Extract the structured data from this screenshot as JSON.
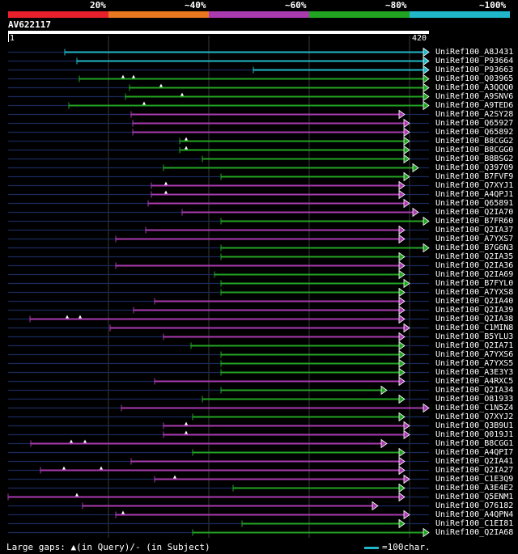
{
  "query": {
    "name": "AV622117",
    "start": "1",
    "end": "420"
  },
  "percent_labels": [
    "20%",
    "~40%",
    "~60%",
    "~80%",
    "~100%"
  ],
  "colors": {
    "red": "#e8202c",
    "orange": "#e8771f",
    "magenta": "#a93ab0",
    "green": "#22a423",
    "cyan": "#1fb7c9",
    "line": "#1a2a5c"
  },
  "hits": [
    {
      "name": "UniRef100_A8J431",
      "color": "cyan",
      "start": 80,
      "end": 530,
      "marks": []
    },
    {
      "name": "UniRef100_P93664",
      "color": "cyan",
      "start": 95,
      "end": 530,
      "marks": []
    },
    {
      "name": "UniRef100_P93663",
      "color": "cyan",
      "start": 313,
      "end": 530,
      "marks": []
    },
    {
      "name": "UniRef100_Q03965",
      "color": "green",
      "start": 98,
      "end": 530,
      "marks": [
        152,
        165
      ]
    },
    {
      "name": "UniRef100_A3QQQ0",
      "color": "green",
      "start": 160,
      "end": 530,
      "marks": [
        199
      ]
    },
    {
      "name": "UniRef100_A9SNV6",
      "color": "green",
      "start": 155,
      "end": 530,
      "marks": [
        225
      ]
    },
    {
      "name": "UniRef100_A9TED6",
      "color": "green",
      "start": 85,
      "end": 530,
      "marks": [
        178
      ]
    },
    {
      "name": "UniRef100_A2SY28",
      "color": "magenta",
      "start": 162,
      "end": 500,
      "marks": []
    },
    {
      "name": "UniRef100_Q65927",
      "color": "magenta",
      "start": 164,
      "end": 506,
      "marks": []
    },
    {
      "name": "UniRef100_Q65892",
      "color": "magenta",
      "start": 164,
      "end": 506,
      "marks": []
    },
    {
      "name": "UniRef100_B8CGG2",
      "color": "green",
      "start": 222,
      "end": 506,
      "marks": [
        230
      ]
    },
    {
      "name": "UniRef100_B8CGG0",
      "color": "green",
      "start": 222,
      "end": 506,
      "marks": [
        230
      ]
    },
    {
      "name": "UniRef100_B8BSG2",
      "color": "green",
      "start": 250,
      "end": 506,
      "marks": []
    },
    {
      "name": "UniRef100_Q39709",
      "color": "green",
      "start": 202,
      "end": 517,
      "marks": []
    },
    {
      "name": "UniRef100_B7FVF9",
      "color": "green",
      "start": 273,
      "end": 506,
      "marks": []
    },
    {
      "name": "UniRef100_Q7XYJ1",
      "color": "magenta",
      "start": 187,
      "end": 500,
      "marks": [
        205
      ]
    },
    {
      "name": "UniRef100_A4QPJ1",
      "color": "magenta",
      "start": 187,
      "end": 500,
      "marks": [
        205
      ]
    },
    {
      "name": "UniRef100_Q65891",
      "color": "magenta",
      "start": 183,
      "end": 506,
      "marks": []
    },
    {
      "name": "UniRef100_Q2IA70",
      "color": "magenta",
      "start": 225,
      "end": 517,
      "marks": []
    },
    {
      "name": "UniRef100_B7FR60",
      "color": "green",
      "start": 273,
      "end": 530,
      "marks": []
    },
    {
      "name": "UniRef100_Q2IA37",
      "color": "magenta",
      "start": 180,
      "end": 500,
      "marks": []
    },
    {
      "name": "UniRef100_A7YXS7",
      "color": "magenta",
      "start": 143,
      "end": 500,
      "marks": []
    },
    {
      "name": "UniRef100_B7G6N3",
      "color": "green",
      "start": 273,
      "end": 530,
      "marks": []
    },
    {
      "name": "UniRef100_Q2IA35",
      "color": "green",
      "start": 273,
      "end": 500,
      "marks": []
    },
    {
      "name": "UniRef100_Q2IA36",
      "color": "magenta",
      "start": 143,
      "end": 500,
      "marks": []
    },
    {
      "name": "UniRef100_Q2IA69",
      "color": "green",
      "start": 265,
      "end": 500,
      "marks": []
    },
    {
      "name": "UniRef100_B7FYL0",
      "color": "green",
      "start": 273,
      "end": 506,
      "marks": []
    },
    {
      "name": "UniRef100_A7YXS8",
      "color": "green",
      "start": 273,
      "end": 500,
      "marks": []
    },
    {
      "name": "UniRef100_Q2IA40",
      "color": "magenta",
      "start": 191,
      "end": 500,
      "marks": []
    },
    {
      "name": "UniRef100_Q2IA39",
      "color": "magenta",
      "start": 165,
      "end": 500,
      "marks": []
    },
    {
      "name": "UniRef100_Q2IA38",
      "color": "magenta",
      "start": 37,
      "end": 500,
      "marks": [
        83,
        99
      ]
    },
    {
      "name": "UniRef100_C1MIN8",
      "color": "magenta",
      "start": 136,
      "end": 506,
      "marks": []
    },
    {
      "name": "UniRef100_B5YLU3",
      "color": "magenta",
      "start": 202,
      "end": 500,
      "marks": []
    },
    {
      "name": "UniRef100_Q2IA71",
      "color": "green",
      "start": 236,
      "end": 500,
      "marks": []
    },
    {
      "name": "UniRef100_A7YXS6",
      "color": "green",
      "start": 273,
      "end": 500,
      "marks": []
    },
    {
      "name": "UniRef100_A7YXS5",
      "color": "green",
      "start": 273,
      "end": 500,
      "marks": []
    },
    {
      "name": "UniRef100_A3E3Y3",
      "color": "green",
      "start": 273,
      "end": 500,
      "marks": []
    },
    {
      "name": "UniRef100_A4RXC5",
      "color": "magenta",
      "start": 191,
      "end": 500,
      "marks": []
    },
    {
      "name": "UniRef100_Q2IA34",
      "color": "green",
      "start": 273,
      "end": 478,
      "marks": []
    },
    {
      "name": "UniRef100_O81933",
      "color": "green",
      "start": 250,
      "end": 500,
      "marks": []
    },
    {
      "name": "UniRef100_C1N5Z4",
      "color": "magenta",
      "start": 150,
      "end": 530,
      "marks": []
    },
    {
      "name": "UniRef100_Q7XYJ2",
      "color": "green",
      "start": 238,
      "end": 500,
      "marks": []
    },
    {
      "name": "UniRef100_Q3B9U1",
      "color": "magenta",
      "start": 202,
      "end": 506,
      "marks": [
        230
      ]
    },
    {
      "name": "UniRef100_Q019J1",
      "color": "magenta",
      "start": 202,
      "end": 506,
      "marks": [
        230
      ]
    },
    {
      "name": "UniRef100_B8CGG1",
      "color": "magenta",
      "start": 38,
      "end": 478,
      "marks": [
        88,
        105
      ]
    },
    {
      "name": "UniRef100_A4QPI7",
      "color": "green",
      "start": 238,
      "end": 500,
      "marks": []
    },
    {
      "name": "UniRef100_Q2IA41",
      "color": "magenta",
      "start": 162,
      "end": 500,
      "marks": []
    },
    {
      "name": "UniRef100_Q2IA27",
      "color": "magenta",
      "start": 50,
      "end": 500,
      "marks": [
        79,
        125
      ]
    },
    {
      "name": "UniRef100_C1E3Q9",
      "color": "magenta",
      "start": 191,
      "end": 506,
      "marks": [
        216
      ]
    },
    {
      "name": "UniRef100_A3E4E2",
      "color": "green",
      "start": 288,
      "end": 500,
      "marks": []
    },
    {
      "name": "UniRef100_Q5ENM1",
      "color": "magenta",
      "start": 10,
      "end": 500,
      "marks": [
        95
      ]
    },
    {
      "name": "UniRef100_O76182",
      "color": "magenta",
      "start": 102,
      "end": 467,
      "marks": []
    },
    {
      "name": "UniRef100_A4QPN4",
      "color": "magenta",
      "start": 143,
      "end": 506,
      "marks": [
        152
      ]
    },
    {
      "name": "UniRef100_C1EI81",
      "color": "green",
      "start": 299,
      "end": 500,
      "marks": []
    },
    {
      "name": "UniRef100_Q2IA68",
      "color": "green",
      "start": 238,
      "end": 530,
      "marks": []
    }
  ],
  "legend": {
    "gaps_label": "Large gaps:",
    "triangle": "▲",
    "query_text": "(in Query)/- (in Subject)",
    "scale_text": "=100char."
  }
}
